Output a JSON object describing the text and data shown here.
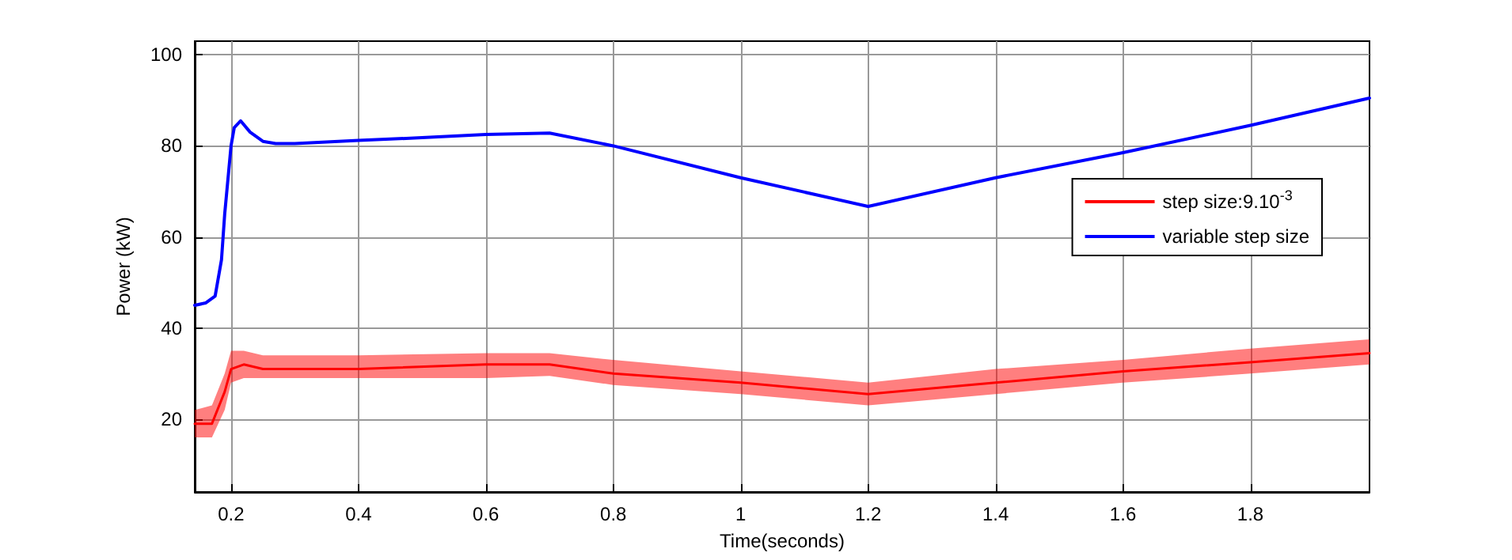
{
  "chart_data": {
    "type": "line",
    "xlabel": "Time(seconds)",
    "ylabel": "Power (kW)",
    "xlim": [
      0.143,
      1.987
    ],
    "xticks": [
      0.2,
      0.4,
      0.6,
      0.8,
      1,
      1.2,
      1.4,
      1.6,
      1.8
    ],
    "ylim": [
      4,
      103
    ],
    "yticks": [
      20,
      40,
      60,
      80,
      100
    ],
    "grid": true,
    "legend": "right",
    "line_style": "solid",
    "marker": "none",
    "series": [
      {
        "name": "step size:9.10$^{-3}$",
        "color": "#ff0000",
        "x": [
          0.143,
          0.17,
          0.19,
          0.2,
          0.22,
          0.25,
          0.4,
          0.6,
          0.7,
          0.8,
          1.0,
          1.2,
          1.4,
          1.6,
          1.8,
          1.987
        ],
        "values": [
          19,
          19,
          26,
          31,
          32,
          31,
          31,
          32,
          32,
          30,
          28,
          25.5,
          28,
          30.5,
          32.5,
          34.5
        ],
        "lower": [
          16,
          16,
          22,
          28,
          29,
          29,
          29,
          29,
          29.5,
          27.5,
          25.5,
          23,
          25.5,
          28,
          30,
          32
        ],
        "upper": [
          22,
          23,
          30,
          35,
          35,
          34,
          34,
          34.5,
          34.5,
          33,
          30.5,
          28,
          31,
          33,
          35.5,
          37.5
        ]
      },
      {
        "name": "variable step size",
        "color": "#0000ff",
        "x": [
          0.143,
          0.16,
          0.175,
          0.185,
          0.19,
          0.2,
          0.205,
          0.215,
          0.23,
          0.25,
          0.27,
          0.3,
          0.4,
          0.5,
          0.6,
          0.7,
          0.8,
          1.0,
          1.2,
          1.4,
          1.6,
          1.8,
          1.987
        ],
        "values": [
          45,
          45.5,
          47,
          55,
          65,
          80,
          84,
          85.5,
          83,
          81,
          80.5,
          80.5,
          81.2,
          81.8,
          82.5,
          82.8,
          80,
          73,
          66.7,
          73,
          78.5,
          84.5,
          90.5
        ]
      }
    ]
  }
}
